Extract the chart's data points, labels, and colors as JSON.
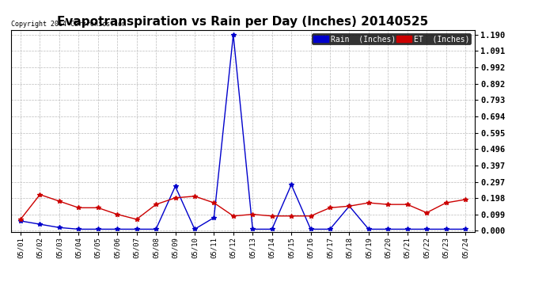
{
  "title": "Evapotranspiration vs Rain per Day (Inches) 20140525",
  "copyright": "Copyright 2014 Cartronics.com",
  "x_labels": [
    "05/01",
    "05/02",
    "05/03",
    "05/04",
    "05/05",
    "05/06",
    "05/07",
    "05/08",
    "05/09",
    "05/10",
    "05/11",
    "05/12",
    "05/13",
    "05/14",
    "05/15",
    "05/16",
    "05/17",
    "05/18",
    "05/19",
    "05/20",
    "05/21",
    "05/22",
    "05/23",
    "05/24"
  ],
  "rain": [
    0.06,
    0.04,
    0.02,
    0.01,
    0.01,
    0.01,
    0.01,
    0.01,
    0.27,
    0.01,
    0.08,
    1.19,
    0.01,
    0.01,
    0.28,
    0.01,
    0.01,
    0.15,
    0.01,
    0.01,
    0.01,
    0.01,
    0.01,
    0.01
  ],
  "et": [
    0.07,
    0.22,
    0.18,
    0.14,
    0.14,
    0.1,
    0.07,
    0.16,
    0.2,
    0.21,
    0.17,
    0.09,
    0.1,
    0.09,
    0.09,
    0.09,
    0.14,
    0.15,
    0.17,
    0.16,
    0.16,
    0.11,
    0.17,
    0.19
  ],
  "rain_color": "#0000cc",
  "et_color": "#cc0000",
  "bg_color": "#ffffff",
  "plot_bg_color": "#ffffff",
  "grid_color": "#bbbbbb",
  "yticks": [
    0.0,
    0.099,
    0.198,
    0.297,
    0.397,
    0.496,
    0.595,
    0.694,
    0.793,
    0.892,
    0.992,
    1.091,
    1.19
  ],
  "title_fontsize": 11,
  "legend_rain_label": "Rain  (Inches)",
  "legend_et_label": "ET  (Inches)"
}
